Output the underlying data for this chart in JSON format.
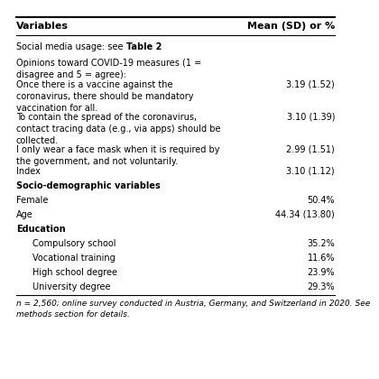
{
  "header_left": "Variables",
  "header_right": "Mean (SD) or %",
  "rows": [
    {
      "text": "Social media usage: see ",
      "text_bold": "Table 2",
      "value": "",
      "indent": 0,
      "bold": false
    },
    {
      "text": "Opinions toward COVID-19 measures (1 =\ndisagree and 5 = agree):",
      "value": "",
      "indent": 0,
      "bold": false
    },
    {
      "text": "Once there is a vaccine against the\ncoronavirus, there should be mandatory\nvaccination for all.",
      "value": "3.19 (1.52)",
      "indent": 0,
      "bold": false
    },
    {
      "text": "To contain the spread of the coronavirus,\ncontact tracing data (e.g., via apps) should be\ncollected.",
      "value": "3.10 (1.39)",
      "indent": 0,
      "bold": false
    },
    {
      "text": "I only wear a face mask when it is required by\nthe government, and not voluntarily.",
      "value": "2.99 (1.51)",
      "indent": 0,
      "bold": false
    },
    {
      "text": "Index",
      "value": "3.10 (1.12)",
      "indent": 0,
      "bold": false
    },
    {
      "text": "Socio-demographic variables",
      "value": "",
      "indent": 0,
      "bold": true
    },
    {
      "text": "Female",
      "value": "50.4%",
      "indent": 0,
      "bold": false
    },
    {
      "text": "Age",
      "value": "44.34 (13.80)",
      "indent": 0,
      "bold": false
    },
    {
      "text": "Education",
      "value": "",
      "indent": 0,
      "bold": true
    },
    {
      "text": "Compulsory school",
      "value": "35.2%",
      "indent": 1,
      "bold": false
    },
    {
      "text": "Vocational training",
      "value": "11.6%",
      "indent": 1,
      "bold": false
    },
    {
      "text": "High school degree",
      "value": "23.9%",
      "indent": 1,
      "bold": false
    },
    {
      "text": "University degree",
      "value": "29.3%",
      "indent": 1,
      "bold": false
    }
  ],
  "footnote_line1": "n = 2,560; online survey conducted in Austria, Germany, and Switzerland in 2020. See",
  "footnote_line2": "methods section for details.",
  "font_family": "DejaVu Sans",
  "font_size": 7.0,
  "bg_color": "#ffffff"
}
